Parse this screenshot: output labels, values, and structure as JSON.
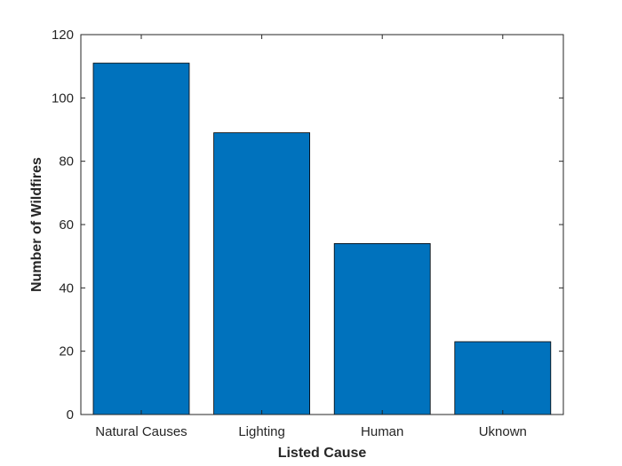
{
  "chart_data": {
    "type": "bar",
    "title": "",
    "xlabel": "Listed Cause",
    "ylabel": "Number of Wildfires",
    "categories": [
      "Natural Causes",
      "Lighting",
      "Human",
      "Uknown"
    ],
    "values": [
      111,
      89,
      54,
      23
    ],
    "ylim": [
      0,
      120
    ],
    "yticks": [
      0,
      20,
      40,
      60,
      80,
      100,
      120
    ],
    "grid": false,
    "legend": "none",
    "colors": {
      "bar": "#0072BD",
      "bar_edge": "#000000",
      "axis": "#262626"
    }
  }
}
